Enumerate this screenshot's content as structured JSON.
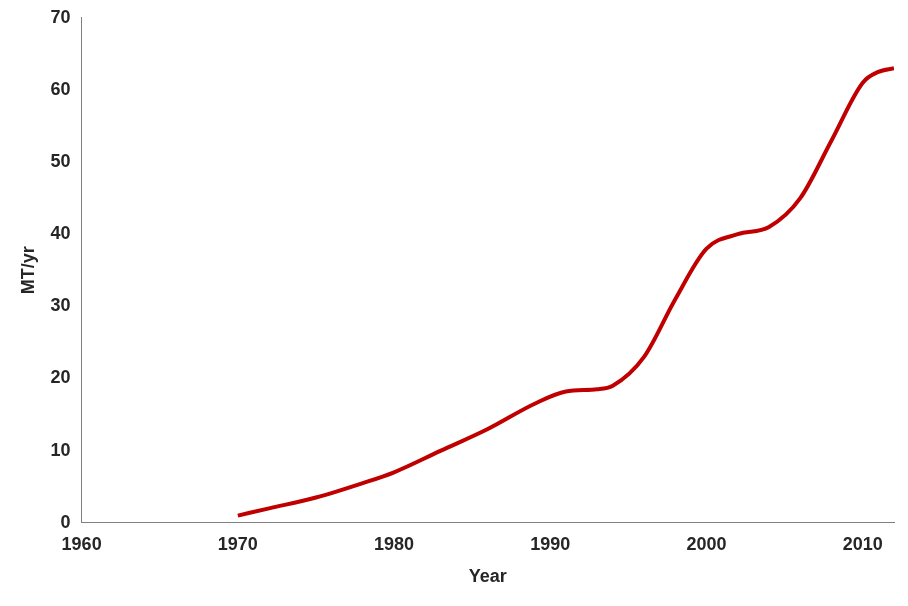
{
  "chart_data": {
    "type": "line",
    "x_label": "Year",
    "y_label": "MT/yr",
    "x": [
      1970,
      1972,
      1975,
      1978,
      1980,
      1983,
      1986,
      1989,
      1991,
      1993,
      1994,
      1996,
      1998,
      2000,
      2002,
      2004,
      2006,
      2008,
      2010,
      2011,
      2012
    ],
    "values": [
      1,
      2,
      3.5,
      5.5,
      7,
      10,
      13,
      16.5,
      18.2,
      18.5,
      19,
      23,
      31,
      38,
      40,
      41,
      45,
      53,
      61,
      62.5,
      63
    ],
    "color": "#c00000",
    "xlim": [
      1960,
      2012
    ],
    "xticks": [
      1960,
      1970,
      1980,
      1990,
      2000,
      2010
    ],
    "ylim": [
      0,
      70
    ],
    "yticks": [
      0,
      10,
      20,
      30,
      40,
      50,
      60,
      70
    ],
    "grid": false
  }
}
